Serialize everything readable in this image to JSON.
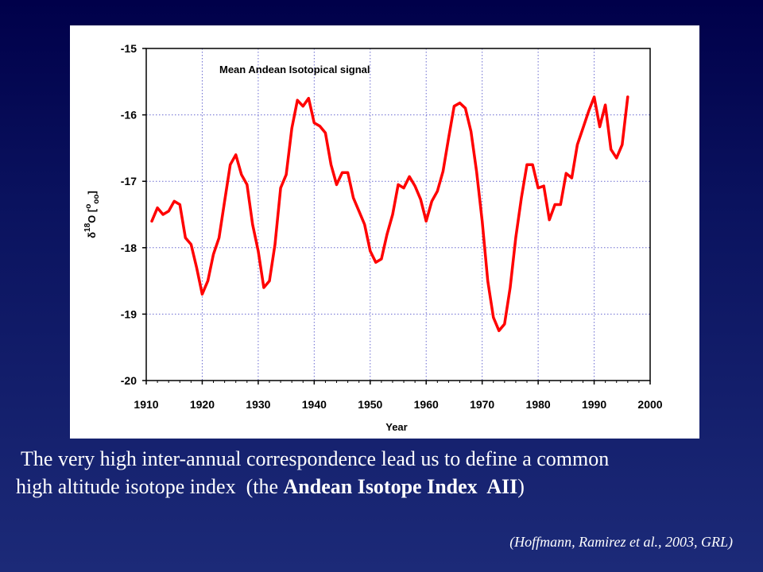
{
  "chart_data": {
    "type": "line",
    "title": "Mean Andean Isotopical signal",
    "xlabel": "Year",
    "ylabel": "δ18O [‰]",
    "ylabel_parts": {
      "delta": "δ",
      "sup": "18",
      "element": "O [",
      "permil_top": "o",
      "permil_bottom": "oo",
      "close": "]"
    },
    "xlim": [
      1910,
      2000
    ],
    "ylim": [
      -20,
      -15
    ],
    "xticks": [
      1910,
      1920,
      1930,
      1940,
      1950,
      1960,
      1970,
      1980,
      1990,
      2000
    ],
    "yticks": [
      -15,
      -16,
      -17,
      -18,
      -19,
      -20
    ],
    "grid": true,
    "series": [
      {
        "color": "#ff0000",
        "x": [
          1911,
          1912,
          1913,
          1914,
          1915,
          1916,
          1917,
          1918,
          1919,
          1920,
          1921,
          1922,
          1923,
          1924,
          1925,
          1926,
          1927,
          1928,
          1929,
          1930,
          1931,
          1932,
          1933,
          1934,
          1935,
          1936,
          1937,
          1938,
          1939,
          1940,
          1941,
          1942,
          1943,
          1944,
          1945,
          1946,
          1947,
          1948,
          1949,
          1950,
          1951,
          1952,
          1953,
          1954,
          1955,
          1956,
          1957,
          1958,
          1959,
          1960,
          1961,
          1962,
          1963,
          1964,
          1965,
          1966,
          1967,
          1968,
          1969,
          1970,
          1971,
          1972,
          1973,
          1974,
          1975,
          1976,
          1977,
          1978,
          1979,
          1980,
          1981,
          1982,
          1983,
          1984,
          1985,
          1986,
          1987,
          1988,
          1989,
          1990,
          1991,
          1992,
          1993,
          1994,
          1995,
          1996
        ],
        "y": [
          -17.6,
          -17.4,
          -17.5,
          -17.45,
          -17.3,
          -17.35,
          -17.85,
          -17.95,
          -18.3,
          -18.7,
          -18.5,
          -18.1,
          -17.85,
          -17.3,
          -16.75,
          -16.6,
          -16.9,
          -17.05,
          -17.65,
          -18.05,
          -18.6,
          -18.5,
          -17.95,
          -17.1,
          -16.9,
          -16.2,
          -15.78,
          -15.87,
          -15.75,
          -16.12,
          -16.17,
          -16.27,
          -16.75,
          -17.05,
          -16.87,
          -16.87,
          -17.25,
          -17.45,
          -17.65,
          -18.05,
          -18.22,
          -18.17,
          -17.8,
          -17.5,
          -17.05,
          -17.1,
          -16.93,
          -17.07,
          -17.27,
          -17.6,
          -17.3,
          -17.15,
          -16.85,
          -16.35,
          -15.87,
          -15.82,
          -15.9,
          -16.25,
          -16.85,
          -17.6,
          -18.5,
          -19.05,
          -19.25,
          -19.15,
          -18.6,
          -17.85,
          -17.25,
          -16.75,
          -16.75,
          -17.1,
          -17.07,
          -17.58,
          -17.35,
          -17.35,
          -16.88,
          -16.95,
          -16.45,
          -16.2,
          -15.95,
          -15.73,
          -16.18,
          -15.85,
          -16.52,
          -16.65,
          -16.45,
          -15.73
        ]
      }
    ]
  },
  "caption": {
    "line1": " The very high inter-annual correspondence lead us to define a common",
    "line2_prefix": "high altitude isotope index  (the ",
    "line2_bold": "Andean Isotope Index  AII",
    "line2_suffix": ")"
  },
  "citation": "(Hoffmann, Ramirez et al., 2003, GRL)"
}
